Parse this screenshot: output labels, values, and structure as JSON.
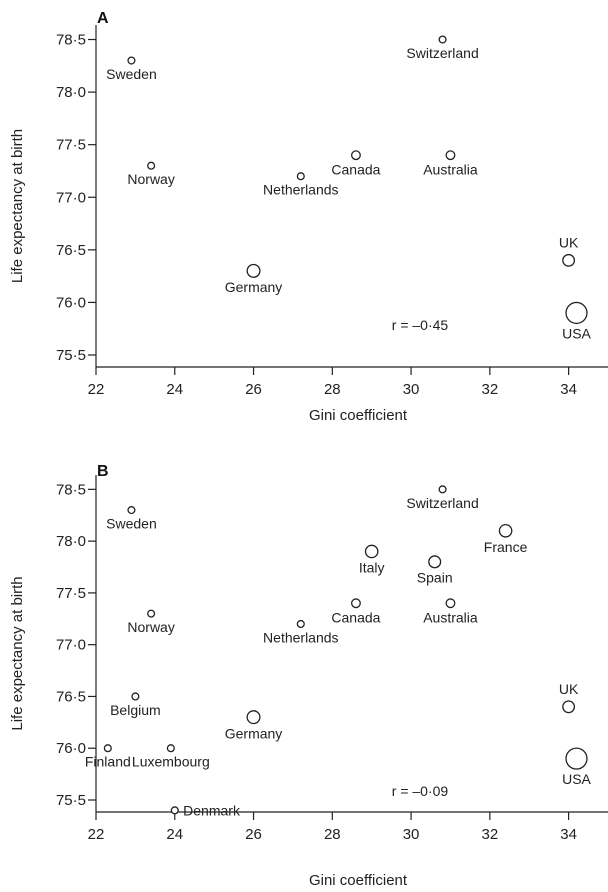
{
  "chart_data": [
    {
      "type": "scatter",
      "panel_label": "A",
      "xlabel": "Gini coefficient",
      "ylabel": "Life expectancy at birth",
      "xlim": [
        22,
        35
      ],
      "ylim": [
        75.5,
        78.6
      ],
      "x_ticks": [
        "22",
        "24",
        "26",
        "28",
        "30",
        "32",
        "34"
      ],
      "y_ticks": [
        "75·5",
        "76·0",
        "76·5",
        "77·0",
        "77·5",
        "78·0",
        "78·5"
      ],
      "annotation": "r = –0·45",
      "points": [
        {
          "name": "Sweden",
          "x": 22.9,
          "y": 78.3,
          "size": 1,
          "label_pos": "below"
        },
        {
          "name": "Norway",
          "x": 23.4,
          "y": 77.3,
          "size": 1,
          "label_pos": "below"
        },
        {
          "name": "Switzerland",
          "x": 30.8,
          "y": 78.5,
          "size": 1,
          "label_pos": "below"
        },
        {
          "name": "Netherlands",
          "x": 27.2,
          "y": 77.2,
          "size": 1,
          "label_pos": "below"
        },
        {
          "name": "Canada",
          "x": 28.6,
          "y": 77.4,
          "size": 1.6,
          "label_pos": "below"
        },
        {
          "name": "Australia",
          "x": 31.0,
          "y": 77.4,
          "size": 1.6,
          "label_pos": "below"
        },
        {
          "name": "Germany",
          "x": 26.0,
          "y": 76.3,
          "size": 3.5,
          "label_pos": "below"
        },
        {
          "name": "UK",
          "x": 34.0,
          "y": 76.4,
          "size": 2.9,
          "label_pos": "above"
        },
        {
          "name": "USA",
          "x": 34.2,
          "y": 75.9,
          "size": 9.5,
          "label_pos": "below"
        }
      ]
    },
    {
      "type": "scatter",
      "panel_label": "B",
      "xlabel": "Gini coefficient",
      "ylabel": "Life expectancy at birth",
      "xlim": [
        22,
        35
      ],
      "ylim": [
        75.5,
        78.6
      ],
      "x_ticks": [
        "22",
        "24",
        "26",
        "28",
        "30",
        "32",
        "34"
      ],
      "y_ticks": [
        "75·5",
        "76·0",
        "76·5",
        "77·0",
        "77·5",
        "78·0",
        "78·5"
      ],
      "annotation": "r = –0·09",
      "points": [
        {
          "name": "Sweden",
          "x": 22.9,
          "y": 78.3,
          "size": 1,
          "label_pos": "below"
        },
        {
          "name": "Norway",
          "x": 23.4,
          "y": 77.3,
          "size": 1,
          "label_pos": "below"
        },
        {
          "name": "Belgium",
          "x": 23.0,
          "y": 76.5,
          "size": 1,
          "label_pos": "below"
        },
        {
          "name": "Finland",
          "x": 22.3,
          "y": 76.0,
          "size": 1,
          "label_pos": "below"
        },
        {
          "name": "Luxembourg",
          "x": 23.9,
          "y": 76.0,
          "size": 1,
          "label_pos": "below"
        },
        {
          "name": "Denmark",
          "x": 24.0,
          "y": 75.4,
          "size": 1,
          "label_pos": "right"
        },
        {
          "name": "Germany",
          "x": 26.0,
          "y": 76.3,
          "size": 3.5,
          "label_pos": "below"
        },
        {
          "name": "Netherlands",
          "x": 27.2,
          "y": 77.2,
          "size": 1,
          "label_pos": "below"
        },
        {
          "name": "Canada",
          "x": 28.6,
          "y": 77.4,
          "size": 1.6,
          "label_pos": "below"
        },
        {
          "name": "Italy",
          "x": 29.0,
          "y": 77.9,
          "size": 3.3,
          "label_pos": "below"
        },
        {
          "name": "Spain",
          "x": 30.6,
          "y": 77.8,
          "size": 3.0,
          "label_pos": "below"
        },
        {
          "name": "Switzerland",
          "x": 30.8,
          "y": 78.5,
          "size": 1,
          "label_pos": "below"
        },
        {
          "name": "Australia",
          "x": 31.0,
          "y": 77.4,
          "size": 1.6,
          "label_pos": "below"
        },
        {
          "name": "France",
          "x": 32.4,
          "y": 78.1,
          "size": 3.3,
          "label_pos": "below"
        },
        {
          "name": "UK",
          "x": 34.0,
          "y": 76.4,
          "size": 2.9,
          "label_pos": "above"
        },
        {
          "name": "USA",
          "x": 34.2,
          "y": 75.9,
          "size": 9.5,
          "label_pos": "below"
        }
      ]
    }
  ]
}
